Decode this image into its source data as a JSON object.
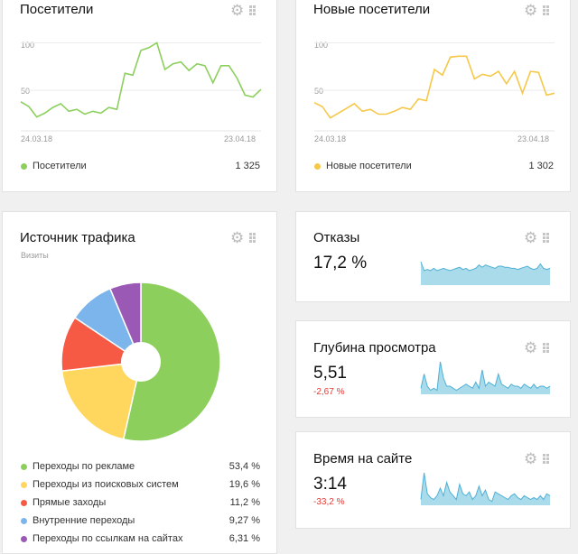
{
  "colors": {
    "green": "#8ccf5c",
    "yellow": "#f5c84b",
    "blue_fill": "#a9dbea",
    "blue_line": "#4fb0d6",
    "red": "#e53935"
  },
  "visitors": {
    "title": "Посетители",
    "y_tick_100": "100",
    "y_tick_50": "50",
    "date_start": "24.03.18",
    "date_end": "23.04.18",
    "legend_label": "Посетители",
    "legend_value": "1 325"
  },
  "new_visitors": {
    "title": "Новые посетители",
    "y_tick_100": "100",
    "y_tick_50": "50",
    "date_start": "24.03.18",
    "date_end": "23.04.18",
    "legend_label": "Новые посетители",
    "legend_value": "1 302"
  },
  "traffic": {
    "title": "Источник трафика",
    "subtitle": "Визиты",
    "items": [
      {
        "label": "Переходы по рекламе",
        "value": "53,4 %"
      },
      {
        "label": "Переходы из поисковых систем",
        "value": "19,6 %"
      },
      {
        "label": "Прямые заходы",
        "value": "11,2 %"
      },
      {
        "label": "Внутренние переходы",
        "value": "9,27 %"
      },
      {
        "label": "Переходы по ссылкам на сайтах",
        "value": "6,31 %"
      }
    ]
  },
  "bounce": {
    "title": "Отказы",
    "value": "17,2 %"
  },
  "depth": {
    "title": "Глубина просмотра",
    "value": "5,51",
    "delta": "-2,67 %"
  },
  "time": {
    "title": "Время на сайте",
    "value": "3:14",
    "delta": "-33,2 %"
  },
  "icons": [
    "gear-icon",
    "drag-handle-icon"
  ],
  "chart_data": [
    {
      "type": "line",
      "title": "Посетители",
      "x_range": [
        "24.03.18",
        "23.04.18"
      ],
      "ylim": [
        15,
        110
      ],
      "y_ticks": [
        50,
        100
      ],
      "series": [
        {
          "name": "Посетители",
          "values": [
            38,
            33,
            22,
            26,
            32,
            36,
            28,
            30,
            25,
            28,
            26,
            32,
            30,
            68,
            66,
            92,
            95,
            100,
            72,
            78,
            80,
            71,
            78,
            76,
            58,
            76,
            76,
            63,
            45,
            43,
            51
          ]
        }
      ]
    },
    {
      "type": "line",
      "title": "Новые посетители",
      "x_range": [
        "24.03.18",
        "23.04.18"
      ],
      "ylim": [
        15,
        110
      ],
      "y_ticks": [
        50,
        100
      ],
      "series": [
        {
          "name": "Новые посетители",
          "values": [
            37,
            33,
            21,
            26,
            31,
            36,
            28,
            30,
            25,
            25,
            28,
            32,
            30,
            41,
            39,
            72,
            66,
            85,
            86,
            86,
            62,
            67,
            65,
            70,
            57,
            70,
            47,
            70,
            69,
            45,
            47
          ]
        }
      ]
    },
    {
      "type": "pie",
      "title": "Источник трафика",
      "categories": [
        "Переходы по рекламе",
        "Переходы из поисковых систем",
        "Прямые заходы",
        "Внутренние переходы",
        "Переходы по ссылкам на сайтах"
      ],
      "values": [
        53.4,
        19.6,
        11.2,
        9.27,
        6.31
      ],
      "colors": [
        "#8ccf5c",
        "#ffd75e",
        "#f65a44",
        "#7cb5ec",
        "#9b59b6"
      ]
    },
    {
      "type": "area",
      "title": "Отказы",
      "series": [
        {
          "values": [
            21,
            13,
            14,
            13,
            15,
            13,
            14,
            15,
            14,
            13,
            14,
            15,
            16,
            14,
            15,
            13,
            14,
            15,
            18,
            16,
            18,
            17,
            16,
            15,
            17,
            17,
            16,
            16,
            15,
            15,
            14,
            15,
            16,
            17,
            15,
            14,
            15,
            19,
            15,
            14,
            15
          ]
        }
      ]
    },
    {
      "type": "area",
      "title": "Глубина просмотра",
      "series": [
        {
          "values": [
            3,
            10,
            4,
            2,
            3,
            2,
            16,
            8,
            4,
            4,
            3,
            2,
            3,
            4,
            5,
            4,
            3,
            6,
            3,
            12,
            4,
            6,
            5,
            4,
            10,
            5,
            4,
            3,
            5,
            4,
            4,
            3,
            5,
            4,
            3,
            5,
            3,
            4,
            4,
            3,
            4
          ]
        }
      ]
    },
    {
      "type": "area",
      "title": "Время на сайте",
      "series": [
        {
          "values": [
            3,
            17,
            6,
            4,
            3,
            5,
            9,
            5,
            12,
            7,
            5,
            3,
            11,
            6,
            5,
            7,
            3,
            5,
            10,
            5,
            8,
            3,
            2,
            7,
            6,
            5,
            4,
            3,
            5,
            6,
            4,
            3,
            5,
            4,
            3,
            4,
            3,
            5,
            3,
            6,
            5
          ]
        }
      ]
    }
  ]
}
